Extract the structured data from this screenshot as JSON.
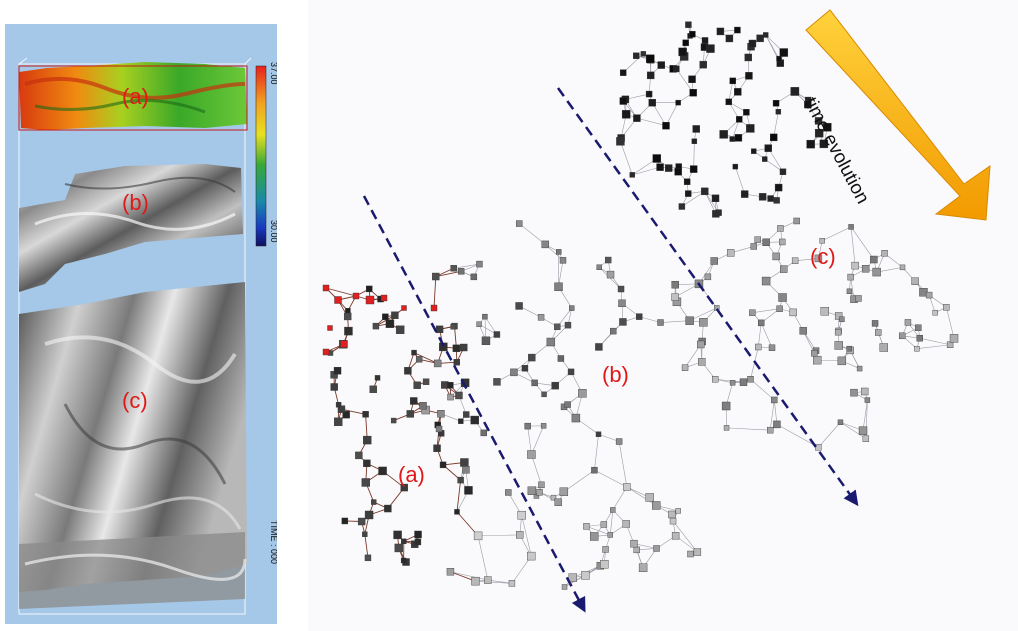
{
  "left_panel": {
    "colorbar": {
      "max_label": "37.00",
      "min_label": "30.00"
    },
    "time_label": "TIME : 000",
    "region_labels": [
      "(a)",
      "(b)",
      "(c)"
    ]
  },
  "graph_panel": {
    "region_labels": [
      "(a)",
      "(b)",
      "(c)"
    ],
    "arrow_label": "time evolution"
  },
  "colors": {
    "background_left": "#a6c8e8",
    "region_label": "#e01818",
    "dashed_arrow": "#1a1a6e",
    "arrow_gradient_top": "#ffd23c",
    "arrow_gradient_bottom": "#f29a00"
  }
}
